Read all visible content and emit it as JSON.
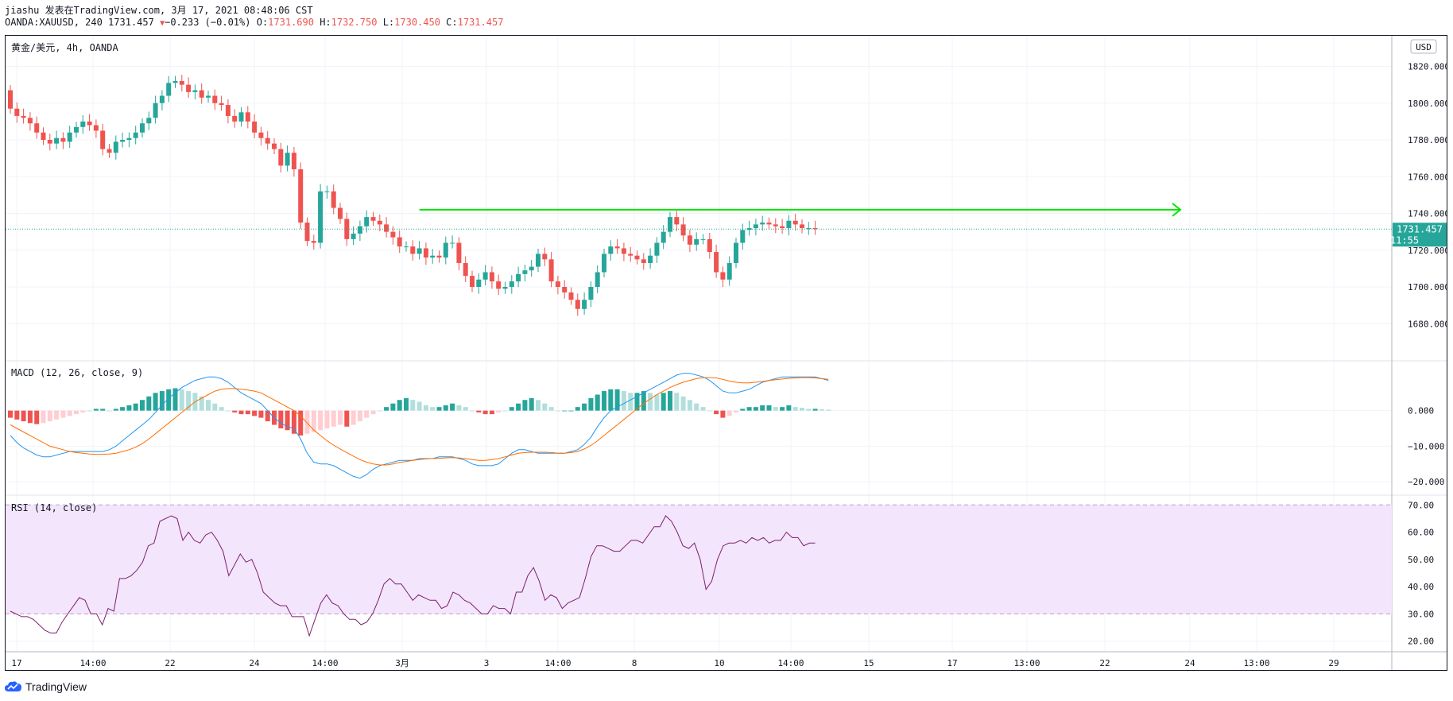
{
  "header": {
    "line1": "jiashu 发表在TradingView.com, 3月 17, 2021 08:48:06 CST",
    "symbol": "OANDA:XAUUSD, 240 1731.457",
    "change": "−0.233 (−0.01%)",
    "o_label": "O:",
    "o_val": "1731.690",
    "h_label": "H:",
    "h_val": "1732.750",
    "l_label": "L:",
    "l_val": "1730.450",
    "c_label": "C:",
    "c_val": "1731.457"
  },
  "footer": {
    "brand": "TradingView"
  },
  "colors": {
    "up": "#26a69a",
    "down": "#ef5350",
    "arrow": "#00e600",
    "macd": "#2196f3",
    "signal": "#ff6d00",
    "rsi": "#7e1f6e",
    "rsi_band": "#f3e5fc"
  },
  "chart_data": [
    {
      "type": "candlestick",
      "title": "黄金/美元, 4h, OANDA",
      "currency_badge": "USD",
      "last_price_label": "1731.457",
      "countdown_label": "11:55",
      "last_price": 1731.457,
      "ylim": [
        1668,
        1828
      ],
      "y_ticks": [
        "1820.000",
        "1800.000",
        "1780.000",
        "1760.000",
        "1740.000",
        "1720.000",
        "1700.000",
        "1680.000"
      ],
      "y_tick_values": [
        1820,
        1800,
        1780,
        1760,
        1740,
        1720,
        1700,
        1680
      ],
      "close": [
        1797,
        1793,
        1792,
        1789,
        1784,
        1780,
        1778,
        1781,
        1779,
        1784,
        1787,
        1790,
        1788,
        1785,
        1775,
        1773,
        1779,
        1780,
        1781,
        1784,
        1789,
        1792,
        1800,
        1804,
        1811,
        1812,
        1810,
        1806,
        1807,
        1803,
        1804,
        1800,
        1799,
        1793,
        1790,
        1795,
        1790,
        1784,
        1781,
        1778,
        1775,
        1766,
        1773,
        1764,
        1735,
        1725,
        1724,
        1752,
        1752,
        1743,
        1737,
        1726,
        1729,
        1733,
        1738,
        1736,
        1734,
        1730,
        1727,
        1722,
        1722,
        1718,
        1721,
        1716,
        1717,
        1716,
        1724,
        1724,
        1713,
        1706,
        1700,
        1704,
        1708,
        1703,
        1699,
        1700,
        1703,
        1707,
        1709,
        1711,
        1718,
        1715,
        1703,
        1700,
        1697,
        1693,
        1688,
        1693,
        1700,
        1708,
        1718,
        1722,
        1721,
        1718,
        1717,
        1715,
        1713,
        1717,
        1724,
        1730,
        1738,
        1734,
        1728,
        1723,
        1726,
        1726,
        1719,
        1708,
        1704,
        1713,
        1724,
        1731,
        1732,
        1734,
        1735,
        1734,
        1733,
        1732,
        1736,
        1734,
        1732,
        1732,
        1731.457
      ],
      "open_first": 1807,
      "swing_wick": 8,
      "resistance_line": {
        "price": 1742
      },
      "x_labels": [
        "17",
        "14:00",
        "22",
        "24",
        "14:00",
        "3月",
        "3",
        "14:00",
        "8",
        "10",
        "14:00",
        "15",
        "17",
        "13:00",
        "22",
        "24",
        "13:00",
        "29"
      ]
    },
    {
      "type": "macd",
      "title": "MACD (12, 26, close, 9)",
      "ylim": [
        -22,
        12
      ],
      "y_ticks": [
        "0.000",
        "−10.000",
        "−20.000"
      ],
      "y_tick_values": [
        0,
        -10,
        -20
      ],
      "histogram": [
        -2,
        -2.5,
        -3,
        -3.5,
        -3.8,
        -3.5,
        -3,
        -2.5,
        -2,
        -1.5,
        -1,
        -0.5,
        0,
        0.5,
        0.5,
        0,
        0.5,
        1,
        1.5,
        2,
        3,
        4,
        5,
        5.5,
        6,
        6.3,
        6,
        5.5,
        5,
        4,
        3,
        2,
        1,
        0,
        -0.5,
        -1,
        -1,
        -1.5,
        -2,
        -3,
        -4,
        -5,
        -5.5,
        -6.5,
        -7,
        -6.5,
        -6,
        -5.5,
        -5,
        -4.5,
        -4,
        -4.5,
        -4,
        -3,
        -2,
        -1,
        0,
        1,
        2,
        3,
        3.5,
        3,
        2.5,
        1.5,
        1,
        1,
        1.5,
        2,
        1.5,
        1,
        0,
        -0.5,
        -1,
        -1,
        -0.5,
        0,
        1,
        2,
        3,
        3.5,
        3,
        2,
        1,
        0,
        0,
        0,
        1,
        2,
        3.5,
        4.5,
        5.5,
        6,
        6,
        5.5,
        5,
        5,
        5.5,
        5,
        4.5,
        5,
        5.5,
        5,
        4,
        3,
        2,
        1,
        0,
        -1,
        -2,
        -1.5,
        -0.5,
        0.5,
        1,
        1,
        1.5,
        1.5,
        1,
        1,
        1.5,
        1,
        0.8,
        0.5,
        0.5,
        0.4,
        0.3
      ],
      "macd": [
        -7,
        -9,
        -10.5,
        -11.5,
        -12.5,
        -13,
        -13,
        -12.5,
        -12,
        -11.5,
        -11.5,
        -11.5,
        -11.5,
        -11.5,
        -11.5,
        -11,
        -10,
        -8.5,
        -7,
        -5.5,
        -4,
        -2.5,
        -0.5,
        1.5,
        3.5,
        5,
        6.5,
        7.5,
        8.5,
        9,
        9.5,
        9.5,
        9,
        8,
        6.5,
        5,
        4,
        3,
        2,
        0,
        -2,
        -3.5,
        -4.5,
        -5,
        -8,
        -12,
        -14.5,
        -15,
        -15,
        -15.5,
        -16.5,
        -17.5,
        -18.5,
        -19,
        -18,
        -16.5,
        -15.5,
        -15,
        -14.5,
        -14,
        -14,
        -14,
        -13.5,
        -13.5,
        -13.5,
        -13,
        -13,
        -13,
        -13.5,
        -14,
        -15,
        -15.5,
        -15.5,
        -15.5,
        -15,
        -13.5,
        -12,
        -11,
        -11,
        -11.5,
        -12,
        -12,
        -12,
        -12,
        -12,
        -11.5,
        -11,
        -9.5,
        -7.5,
        -4.5,
        -2,
        0,
        1,
        2,
        3,
        4,
        5,
        6,
        7,
        8,
        9,
        10,
        10.5,
        10.5,
        10,
        9.5,
        8.5,
        7,
        5.5,
        5,
        5,
        5.5,
        6,
        7,
        8,
        8.5,
        9,
        9.5,
        9.5,
        9.5,
        9.5,
        9.5,
        9.5,
        9,
        8.5
      ],
      "signal": [
        -4,
        -5,
        -6,
        -7,
        -8,
        -9,
        -10,
        -10.5,
        -11,
        -11.5,
        -11.8,
        -12,
        -12.2,
        -12.3,
        -12.3,
        -12.2,
        -12,
        -11.5,
        -11,
        -10.3,
        -9.3,
        -8,
        -6.5,
        -5,
        -3.5,
        -2,
        -0.5,
        1,
        2.5,
        3.5,
        4.5,
        5.5,
        6,
        6.2,
        6.2,
        6,
        5.8,
        5.5,
        5,
        4,
        3,
        2,
        1,
        0,
        -1.5,
        -3.5,
        -5.5,
        -7,
        -8.5,
        -9.7,
        -10.8,
        -11.8,
        -12.8,
        -13.8,
        -14.5,
        -15,
        -15.3,
        -15.3,
        -15,
        -14.6,
        -14.3,
        -14,
        -13.8,
        -13.6,
        -13.5,
        -13.4,
        -13.3,
        -13.2,
        -13.3,
        -13.5,
        -13.8,
        -14,
        -14,
        -13.8,
        -13.5,
        -13,
        -12.5,
        -12,
        -11.8,
        -11.7,
        -11.7,
        -11.7,
        -11.8,
        -12,
        -12,
        -11.8,
        -11.5,
        -10.8,
        -9.8,
        -8.5,
        -7,
        -5.5,
        -4,
        -2.5,
        -1,
        0.5,
        2,
        3.3,
        4.5,
        5.5,
        6.5,
        7.3,
        8,
        8.5,
        9,
        9.3,
        9.3,
        9.2,
        8.8,
        8.3,
        8,
        7.8,
        7.8,
        8,
        8.2,
        8.5,
        8.7,
        8.9,
        9.1,
        9.2,
        9.3,
        9.3,
        9.2,
        9,
        8.8
      ],
      "zero_line": 0
    },
    {
      "type": "rsi",
      "title": "RSI (14, close)",
      "ylim": [
        17,
        73
      ],
      "y_ticks": [
        "70.00",
        "60.00",
        "50.00",
        "40.00",
        "30.00",
        "20.00"
      ],
      "y_tick_values": [
        70,
        60,
        50,
        40,
        30,
        20
      ],
      "band": [
        30,
        70
      ],
      "values": [
        31,
        30,
        29,
        29,
        28,
        26,
        24,
        23,
        23,
        27,
        30,
        33,
        36,
        35,
        30,
        30,
        26,
        32,
        31,
        43,
        43,
        44,
        46,
        49,
        55,
        56,
        64,
        65,
        66,
        65,
        57,
        60,
        57,
        56,
        59,
        60,
        57,
        53,
        44,
        48,
        52,
        49,
        50,
        45,
        38,
        36,
        34,
        33,
        33,
        29,
        29,
        29,
        22,
        28,
        34,
        37,
        34,
        33,
        30,
        28,
        28,
        26,
        27,
        30,
        35,
        41,
        43,
        41,
        41,
        38,
        35,
        37,
        36,
        35,
        35,
        32,
        33,
        38,
        37,
        35,
        34,
        32,
        30,
        30,
        33,
        32,
        32,
        30,
        38,
        38,
        44,
        47,
        42,
        35,
        37,
        36,
        32,
        34,
        35,
        36,
        43,
        51,
        55,
        55,
        54,
        53,
        53,
        55,
        57,
        57,
        56,
        59,
        62,
        62,
        66,
        64,
        60,
        55,
        54,
        56,
        50,
        39,
        42,
        50,
        55,
        56,
        56,
        57,
        56,
        58,
        57,
        58,
        56,
        57,
        57,
        60,
        58,
        58,
        55,
        56,
        56
      ]
    }
  ]
}
